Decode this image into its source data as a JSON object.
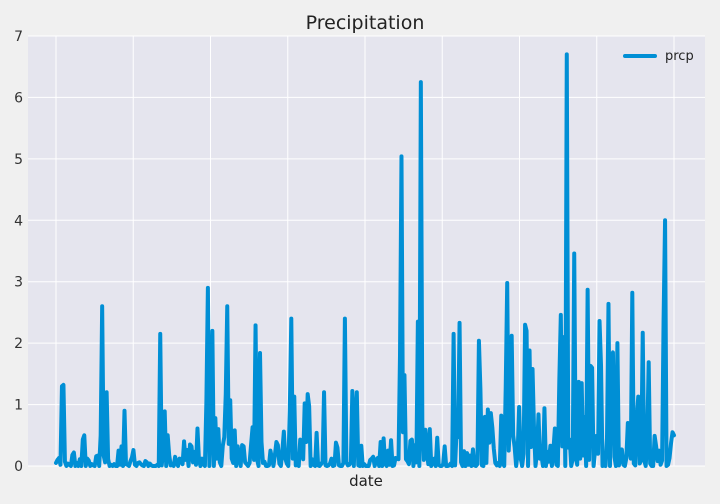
{
  "colors": {
    "background": "#f0f0f0",
    "plot_background": "#e5e5ee",
    "grid": "#ffffff",
    "series": "#008fd5"
  },
  "chart_data": {
    "type": "line",
    "title": "Precipitation",
    "xlabel": "date",
    "ylabel": "",
    "ylim": [
      0,
      7
    ],
    "yticks": [
      "0",
      "1",
      "2",
      "3",
      "4",
      "5",
      "6",
      "7"
    ],
    "grid": true,
    "legend_position": "top-right",
    "x_tick_labels_shown": false,
    "series": [
      {
        "name": "prcp",
        "values": [
          0.05,
          0.1,
          0.13,
          0.02,
          1.3,
          1.32,
          0.07,
          0.0,
          0.04,
          0.02,
          0.0,
          0.18,
          0.22,
          0.0,
          0.05,
          0.0,
          0.11,
          0.0,
          0.43,
          0.5,
          0.0,
          0.12,
          0.09,
          0.0,
          0.03,
          0.01,
          0.0,
          0.16,
          0.17,
          0.0,
          0.5,
          2.6,
          0.17,
          0.06,
          1.2,
          0.11,
          0.0,
          0.02,
          0.0,
          0.03,
          0.0,
          0.0,
          0.25,
          0.02,
          0.32,
          0.0,
          0.9,
          0.03,
          0.02,
          0.0,
          0.08,
          0.14,
          0.26,
          0.02,
          0.0,
          0.05,
          0.06,
          0.03,
          0.01,
          0.0,
          0.08,
          0.06,
          0.0,
          0.04,
          0.01,
          0.0,
          0.0,
          0.0,
          0.02,
          0.0,
          2.15,
          0.01,
          0.27,
          0.89,
          0.0,
          0.5,
          0.18,
          0.01,
          0.02,
          0.0,
          0.15,
          0.05,
          0.0,
          0.12,
          0.11,
          0.03,
          0.4,
          0.1,
          0.26,
          0.0,
          0.35,
          0.32,
          0.06,
          0.23,
          0.02,
          0.61,
          0.1,
          0.0,
          0.12,
          0.03,
          0.0,
          1.06,
          2.9,
          0.0,
          0.81,
          2.2,
          0.0,
          0.78,
          0.12,
          0.6,
          0.06,
          0.0,
          0.33,
          0.47,
          1.17,
          2.6,
          0.36,
          1.07,
          0.12,
          0.05,
          0.58,
          0.0,
          0.32,
          0.13,
          0.0,
          0.34,
          0.32,
          0.06,
          0.03,
          0.0,
          0.05,
          0.35,
          0.63,
          0.1,
          2.29,
          0.11,
          0.0,
          1.84,
          0.39,
          0.05,
          0.07,
          0.0,
          0.0,
          0.01,
          0.25,
          0.12,
          0.0,
          0.18,
          0.39,
          0.34,
          0.04,
          0.0,
          0.25,
          0.56,
          0.12,
          0.04,
          0.0,
          0.9,
          2.4,
          0.12,
          1.13,
          0.01,
          0.02,
          0.0,
          0.43,
          0.27,
          0.11,
          1.02,
          0.39,
          1.17,
          0.97,
          0.0,
          0.11,
          0.02,
          0.0,
          0.54,
          0.01,
          0.0,
          0.03,
          0.07,
          1.2,
          0.01,
          0.0,
          0.01,
          0.04,
          0.12,
          0.0,
          0.01,
          0.38,
          0.3,
          0.01,
          0.0,
          0.0,
          0.05,
          2.4,
          0.06,
          0.01,
          0.02,
          0.06,
          1.22,
          0.0,
          0.76,
          1.2,
          0.01,
          0.0,
          0.33,
          0.0,
          0.03,
          0.0,
          0.0,
          0.0,
          0.1,
          0.12,
          0.15,
          0.0,
          0.1,
          0.13,
          0.0,
          0.39,
          0.0,
          0.45,
          0.04,
          0.0,
          0.25,
          0.02,
          0.42,
          0.0,
          0.01,
          0.13,
          0.12,
          0.11,
          1.8,
          5.04,
          0.55,
          1.48,
          0.11,
          0.08,
          0.03,
          0.41,
          0.43,
          0.0,
          0.34,
          0.06,
          2.35,
          0.0,
          6.25,
          0.68,
          0.1,
          0.59,
          0.26,
          0.03,
          0.6,
          0.0,
          0.05,
          0.12,
          0.0,
          0.46,
          0.02,
          0.0,
          0.0,
          0.03,
          0.32,
          0.0,
          0.0,
          0.01,
          0.04,
          0.0,
          2.15,
          0.01,
          0.58,
          0.47,
          2.33,
          0.06,
          0.0,
          0.24,
          0.0,
          0.21,
          0.02,
          0.17,
          0.0,
          0.27,
          0.01,
          0.0,
          0.03,
          2.04,
          1.25,
          0.01,
          0.0,
          0.8,
          0.05,
          0.92,
          0.38,
          0.86,
          0.63,
          0.28,
          0.05,
          0.01,
          0.05,
          0.0,
          0.82,
          0.05,
          0.0,
          1.29,
          2.98,
          0.25,
          0.76,
          2.12,
          0.5,
          0.3,
          0.0,
          0.21,
          0.96,
          0.13,
          0.0,
          0.2,
          2.3,
          2.2,
          0.0,
          1.88,
          0.31,
          1.58,
          0.6,
          0.0,
          0.23,
          0.84,
          0.12,
          0.17,
          0.0,
          0.94,
          0.0,
          0.23,
          0.07,
          0.33,
          0.0,
          0.26,
          0.61,
          0.02,
          0.0,
          1.4,
          2.46,
          0.32,
          2.1,
          0.0,
          6.7,
          0.3,
          0.43,
          0.0,
          0.12,
          3.46,
          0.14,
          0.02,
          1.37,
          0.12,
          1.35,
          0.17,
          0.8,
          0.0,
          2.87,
          0.1,
          1.63,
          1.6,
          0.0,
          0.25,
          0.49,
          0.2,
          2.36,
          1.63,
          0.0,
          0.01,
          0.0,
          0.45,
          2.64,
          0.0,
          1.78,
          1.85,
          0.15,
          0.0,
          2.0,
          0.01,
          0.16,
          0.27,
          0.02,
          0.0,
          0.13,
          0.7,
          0.29,
          0.12,
          2.82,
          0.04,
          0.01,
          0.8,
          1.13,
          0.04,
          0.1,
          2.17,
          0.09,
          0.0,
          0.42,
          1.69,
          0.04,
          0.0,
          0.0,
          0.49,
          0.32,
          0.08,
          0.25,
          0.02,
          0.09,
          2.38,
          4.0,
          0.0,
          0.02,
          0.13,
          0.37,
          0.55,
          0.5
        ]
      }
    ]
  }
}
